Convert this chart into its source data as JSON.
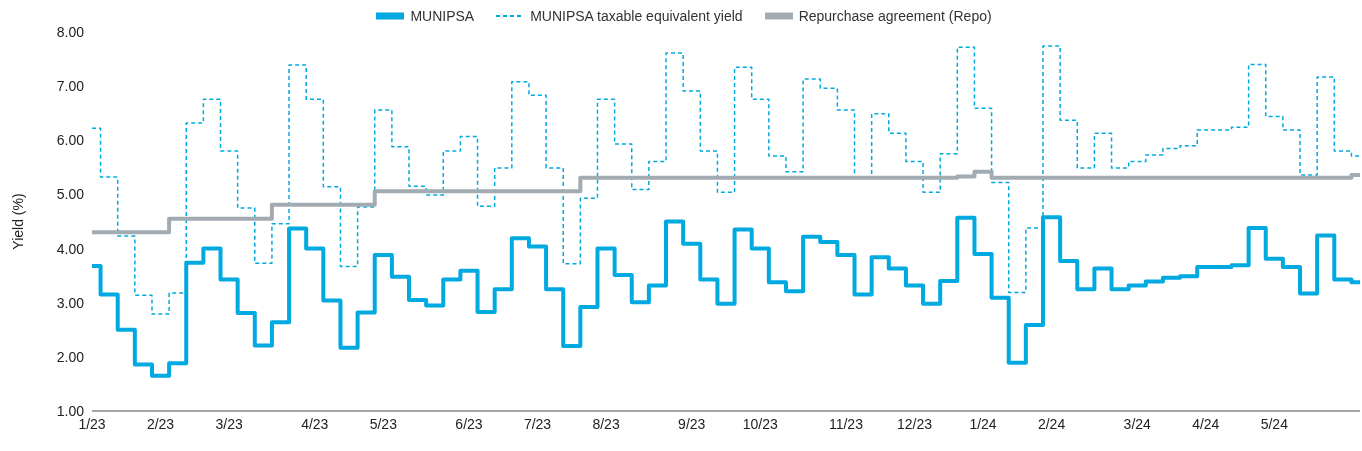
{
  "chart_data": {
    "type": "step",
    "ylabel": "Yield (%)",
    "categories": [
      "1/23",
      null,
      null,
      null,
      "2/23",
      null,
      null,
      null,
      "3/23",
      null,
      null,
      null,
      null,
      "4/23",
      null,
      null,
      null,
      "5/23",
      null,
      null,
      null,
      null,
      "6/23",
      null,
      null,
      null,
      "7/23",
      null,
      null,
      null,
      "8/23",
      null,
      null,
      null,
      null,
      "9/23",
      null,
      null,
      null,
      "10/23",
      null,
      null,
      null,
      null,
      "11/23",
      null,
      null,
      null,
      "12/23",
      null,
      null,
      null,
      "1/24",
      null,
      null,
      null,
      "2/24",
      null,
      null,
      null,
      null,
      "3/24",
      null,
      null,
      null,
      "4/24",
      null,
      null,
      null,
      "5/24",
      null,
      null,
      null,
      null,
      null
    ],
    "series": [
      {
        "name": "MUNIPSA",
        "color": "#00a9e0",
        "line_style": "solid",
        "values": [
          3.68,
          3.15,
          2.5,
          1.86,
          1.65,
          1.88,
          3.74,
          4.0,
          3.43,
          2.81,
          2.21,
          2.64,
          4.37,
          4.0,
          3.04,
          2.17,
          2.82,
          3.88,
          3.48,
          3.05,
          2.95,
          3.43,
          3.59,
          2.83,
          3.25,
          4.19,
          4.04,
          3.25,
          2.2,
          2.92,
          4.0,
          3.51,
          3.01,
          3.32,
          4.5,
          4.09,
          3.43,
          2.98,
          4.35,
          4.0,
          3.38,
          3.21,
          4.22,
          4.12,
          3.88,
          3.15,
          3.84,
          3.63,
          3.32,
          2.98,
          3.4,
          4.57,
          3.9,
          3.09,
          1.89,
          2.59,
          4.58,
          3.77,
          3.25,
          3.63,
          3.25,
          3.32,
          3.39,
          3.46,
          3.49,
          3.66,
          3.66,
          3.69,
          4.38,
          3.81,
          3.66,
          3.17,
          4.24,
          3.43,
          3.38
        ]
      },
      {
        "name": "MUNIPSA taxable equivalent yield",
        "color": "#00a9e0",
        "line_style": "dashed",
        "values": [
          6.22,
          5.32,
          4.23,
          3.14,
          2.79,
          3.18,
          6.32,
          6.76,
          5.8,
          4.75,
          3.73,
          4.46,
          7.39,
          6.76,
          5.14,
          3.67,
          4.77,
          6.56,
          5.88,
          5.15,
          4.99,
          5.8,
          6.07,
          4.78,
          5.49,
          7.08,
          6.83,
          5.49,
          3.72,
          4.93,
          6.76,
          5.93,
          5.09,
          5.61,
          7.61,
          6.91,
          5.8,
          5.04,
          7.35,
          6.76,
          5.71,
          5.42,
          7.13,
          6.96,
          6.56,
          5.32,
          6.49,
          6.13,
          5.61,
          5.04,
          5.75,
          7.72,
          6.59,
          5.22,
          3.19,
          4.38,
          7.74,
          6.37,
          5.49,
          6.13,
          5.49,
          5.61,
          5.73,
          5.85,
          5.9,
          6.19,
          6.19,
          6.24,
          7.4,
          6.44,
          6.19,
          5.36,
          7.17,
          5.8,
          5.71
        ]
      },
      {
        "name": "Repurchase agreement (Repo)",
        "color": "#a2aab2",
        "line_style": "solid",
        "values": [
          4.3,
          4.3,
          4.3,
          4.3,
          4.3,
          4.55,
          4.55,
          4.55,
          4.55,
          4.55,
          4.55,
          4.81,
          4.81,
          4.81,
          4.81,
          4.81,
          4.81,
          5.06,
          5.06,
          5.06,
          5.06,
          5.06,
          5.06,
          5.06,
          5.06,
          5.06,
          5.06,
          5.06,
          5.06,
          5.31,
          5.31,
          5.31,
          5.31,
          5.31,
          5.31,
          5.31,
          5.31,
          5.31,
          5.31,
          5.31,
          5.31,
          5.31,
          5.31,
          5.31,
          5.31,
          5.31,
          5.31,
          5.31,
          5.31,
          5.31,
          5.31,
          5.33,
          5.42,
          5.31,
          5.31,
          5.31,
          5.31,
          5.31,
          5.31,
          5.31,
          5.31,
          5.31,
          5.31,
          5.31,
          5.31,
          5.31,
          5.31,
          5.31,
          5.31,
          5.31,
          5.31,
          5.31,
          5.31,
          5.31,
          5.36
        ]
      }
    ],
    "ylim": [
      1,
      8
    ],
    "yticks": [
      {
        "value": 1,
        "label": "1.00"
      },
      {
        "value": 2,
        "label": "2.00"
      },
      {
        "value": 3,
        "label": "3.00"
      },
      {
        "value": 4,
        "label": "4.00"
      },
      {
        "value": 5,
        "label": "5.00"
      },
      {
        "value": 6,
        "label": "6.00"
      },
      {
        "value": 7,
        "label": "7.00"
      },
      {
        "value": 8,
        "label": "8.00"
      }
    ],
    "legend": "top",
    "grid": false
  }
}
